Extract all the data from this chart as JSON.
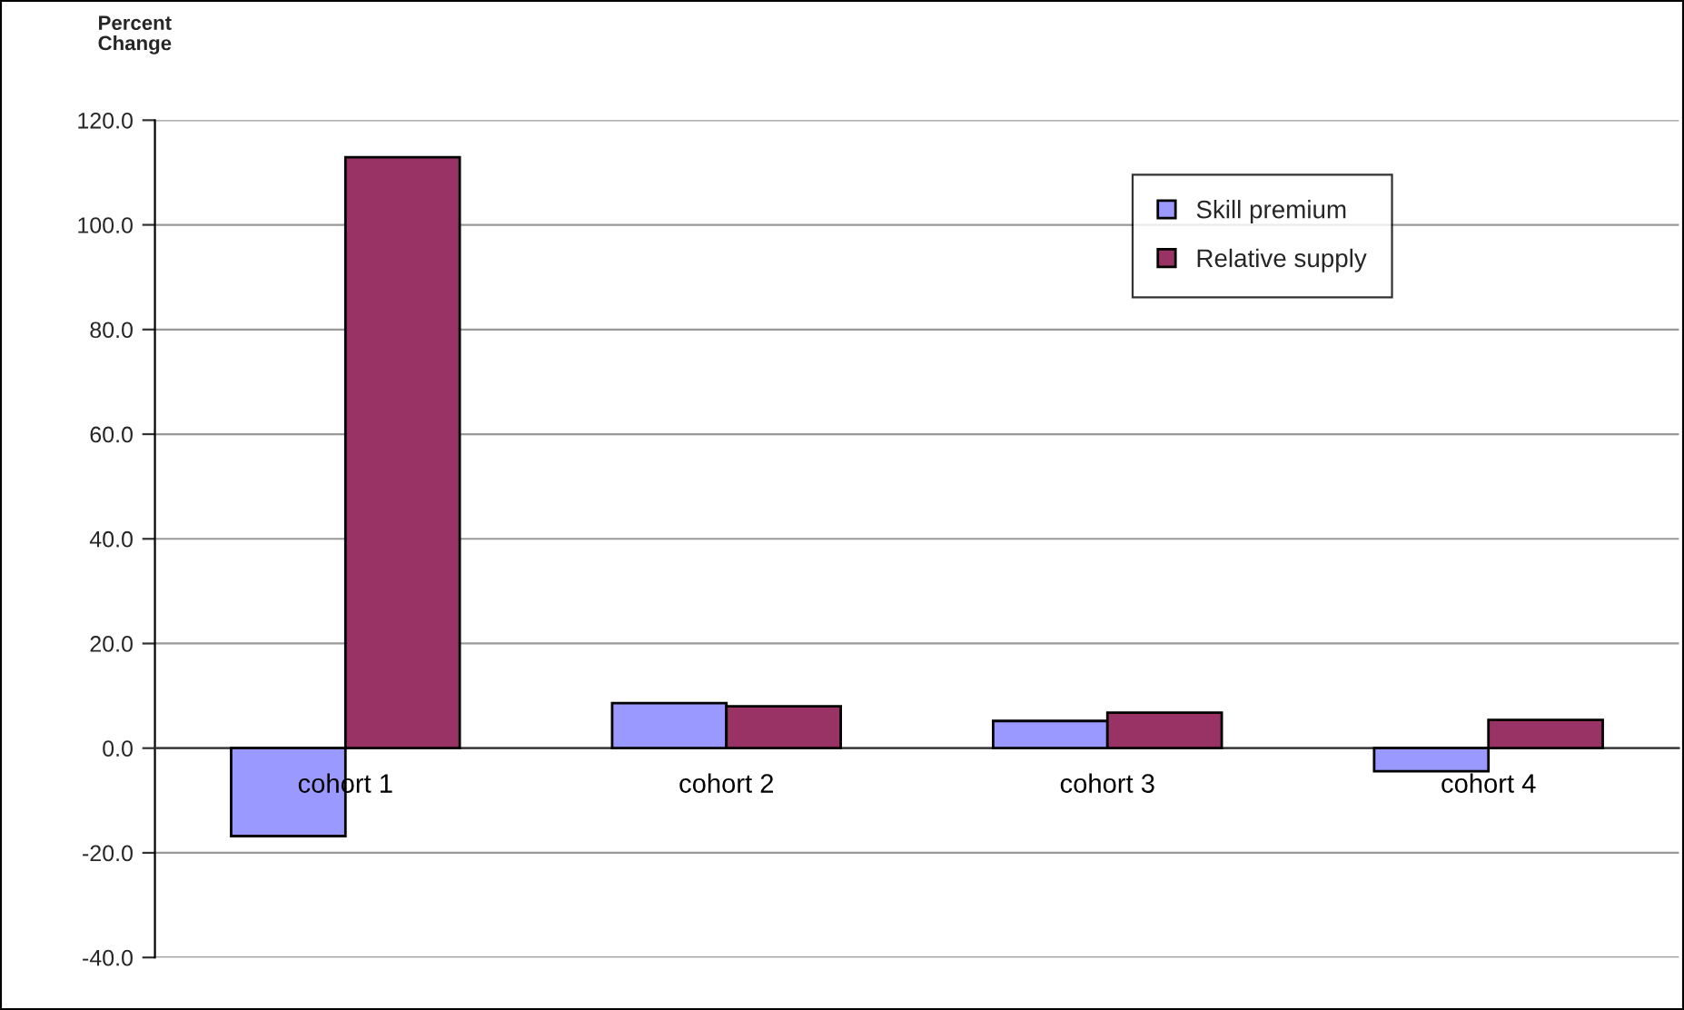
{
  "chart_data": {
    "type": "bar",
    "ylabel": "Percent\nChange",
    "categories": [
      "cohort 1",
      "cohort 2",
      "cohort 3",
      "cohort 4"
    ],
    "series": [
      {
        "name": "Skill premium",
        "color": "#9999ff",
        "values": [
          -16.8,
          8.6,
          5.2,
          -4.4
        ]
      },
      {
        "name": "Relative supply",
        "color": "#993366",
        "values": [
          112.9,
          8.0,
          6.8,
          5.4
        ]
      }
    ],
    "ylim": [
      -40,
      120
    ],
    "yticks": [
      {
        "value": -40,
        "label": "-40.0"
      },
      {
        "value": -20,
        "label": "-20.0"
      },
      {
        "value": 0,
        "label": "0.0"
      },
      {
        "value": 20,
        "label": "20.0"
      },
      {
        "value": 40,
        "label": "40.0"
      },
      {
        "value": 60,
        "label": "60.0"
      },
      {
        "value": 80,
        "label": "80.0"
      },
      {
        "value": 100,
        "label": "100.0"
      },
      {
        "value": 120,
        "label": "120.0"
      }
    ],
    "grid": "y",
    "legend": "top right"
  }
}
